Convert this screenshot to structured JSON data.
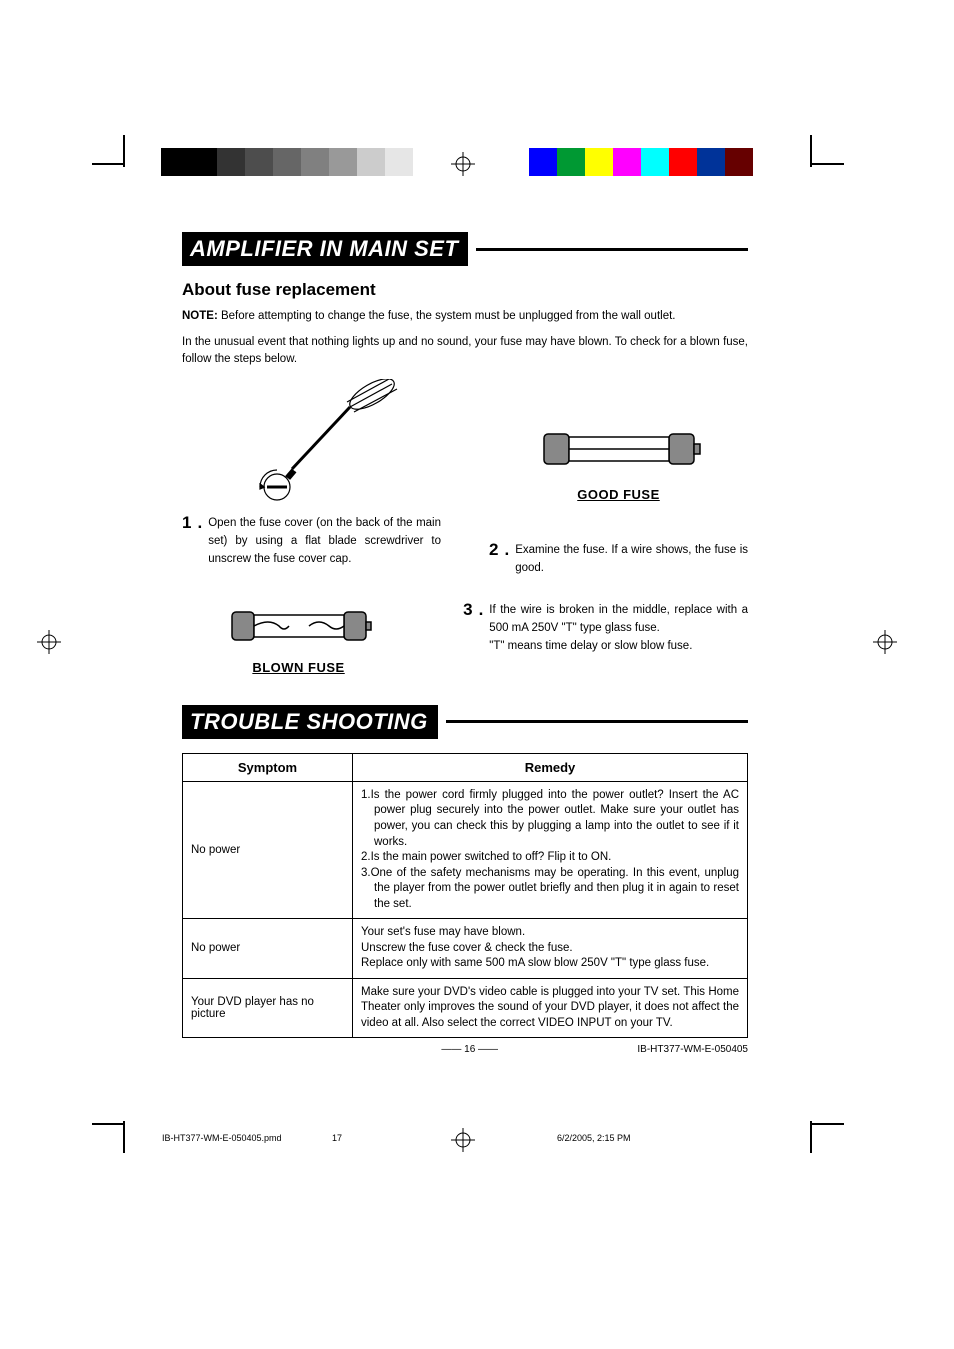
{
  "colors": {
    "gray_bars": [
      "#000000",
      "#000000",
      "#333333",
      "#4d4d4d",
      "#666666",
      "#808080",
      "#999999",
      "#cccccc",
      "#e6e6e6"
    ],
    "color_bars": [
      "#0000ff",
      "#009933",
      "#ffff00",
      "#ff00ff",
      "#00ffff",
      "#ff0000",
      "#003399",
      "#660000"
    ]
  },
  "section1": {
    "title": "AMPLIFIER IN MAIN SET",
    "subheading": "About fuse replacement",
    "note_bold": "NOTE:",
    "note_text": " Before attempting to change the fuse, the system must be unplugged from the wall outlet.",
    "intro": "In the unusual event that nothing lights up and no sound, your fuse may have blown. To check for a blown fuse, follow the steps below.",
    "step1_num": "1",
    "step1": "Open the fuse cover (on the back of the main set) by using a flat blade screwdriver to unscrew the fuse cover cap.",
    "step2_num": "2",
    "step2": "Examine the fuse. If a wire shows, the fuse is good.",
    "step3_num": "3",
    "step3a": "If the wire is broken in the middle, replace with a 500 mA 250V \"T\"  type glass fuse.",
    "step3b": "\"T\" means time delay or slow blow fuse.",
    "good_fuse": "GOOD FUSE",
    "blown_fuse": "BLOWN FUSE"
  },
  "section2": {
    "title": "TROUBLE SHOOTING",
    "col1": "Symptom",
    "col2": "Remedy",
    "rows": [
      {
        "symptom": "No power",
        "remedy": "1.Is the power cord firmly plugged into the power outlet? Insert the AC power plug securely into the power outlet. Make sure your outlet has power, you can check this by plugging a lamp into the outlet to see if it works.\n2.Is the main power switched to off? Flip it to ON.\n3.One of the safety mechanisms may be operating. In this event, unplug the player from the power outlet briefly and then plug it in again to reset the set."
      },
      {
        "symptom": "No power",
        "remedy": "Your set's fuse may have blown.\nUnscrew the fuse cover & check the fuse.\nReplace only with same 500 mA slow blow 250V \"T\" type glass fuse."
      },
      {
        "symptom": "Your DVD player has no picture",
        "remedy": "Make sure your DVD's video cable is plugged into your TV set. This Home Theater only improves the sound of your DVD player, it does not affect the video at all. Also select the correct VIDEO INPUT on your TV."
      }
    ]
  },
  "pagenum": "16",
  "doc_id": "IB-HT377-WM-E-050405",
  "footer_file": "IB-HT377-WM-E-050405.pmd",
  "footer_page": "17",
  "footer_date": "6/2/2005, 2:15 PM"
}
